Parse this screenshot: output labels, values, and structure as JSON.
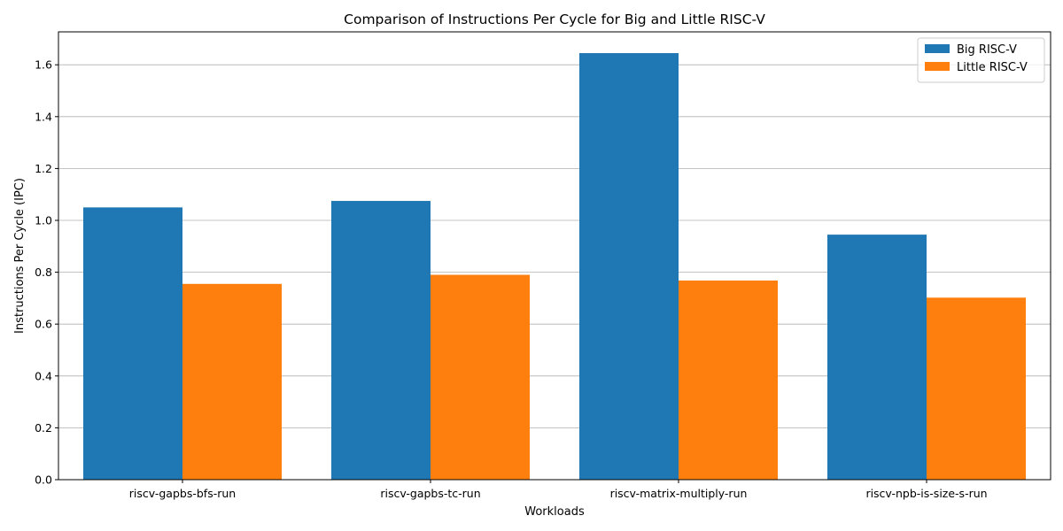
{
  "chart_data": {
    "type": "bar",
    "title": "Comparison of Instructions Per Cycle for Big and Little RISC-V",
    "xlabel": "Workloads",
    "ylabel": "Instructions Per Cycle (IPC)",
    "categories": [
      "riscv-gapbs-bfs-run",
      "riscv-gapbs-tc-run",
      "riscv-matrix-multiply-run",
      "riscv-npb-is-size-s-run"
    ],
    "series": [
      {
        "name": "Big RISC-V",
        "color": "#1f77b4",
        "values": [
          1.05,
          1.075,
          1.645,
          0.945
        ]
      },
      {
        "name": "Little RISC-V",
        "color": "#ff7f0e",
        "values": [
          0.755,
          0.79,
          0.768,
          0.702
        ]
      }
    ],
    "ylim": [
      0,
      1.727
    ],
    "yticks": [
      0.0,
      0.2,
      0.4,
      0.6,
      0.8,
      1.0,
      1.2,
      1.4,
      1.6
    ],
    "ytick_labels": [
      "0.0",
      "0.2",
      "0.4",
      "0.6",
      "0.8",
      "1.0",
      "1.2",
      "1.4",
      "1.6"
    ],
    "grid": "y",
    "legend_position": "top-right"
  }
}
